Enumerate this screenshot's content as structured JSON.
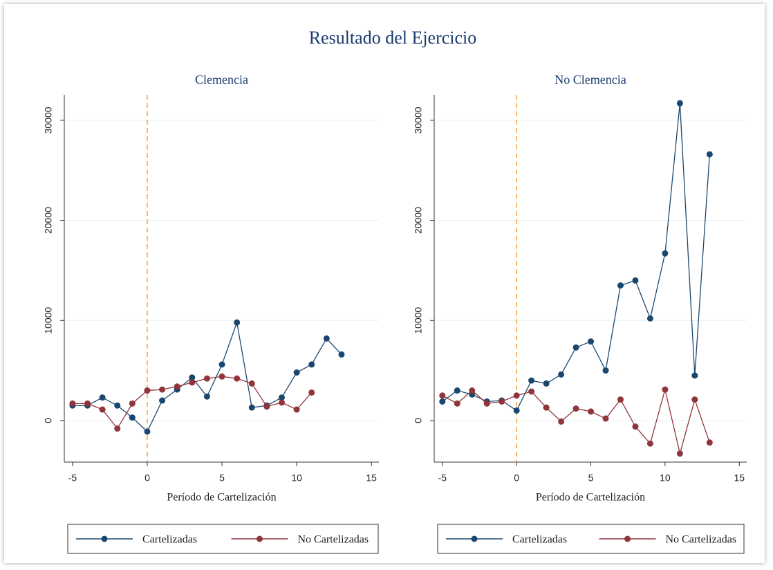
{
  "title": "Resultado del Ejercicio",
  "chart_data": [
    {
      "type": "line",
      "title": "Clemencia",
      "xlabel": "Período de Cartelización",
      "x": [
        -5,
        -4,
        -3,
        -2,
        -1,
        0,
        1,
        2,
        3,
        4,
        5,
        6,
        7,
        8,
        9,
        10,
        11,
        12,
        13
      ],
      "series": [
        {
          "name": "Cartelizadas",
          "color": "#1a476f",
          "values": [
            1500,
            1500,
            2300,
            1500,
            300,
            -1100,
            2000,
            3100,
            4300,
            2400,
            5600,
            9800,
            1300,
            1500,
            2300,
            4800,
            5600,
            8200,
            6600
          ]
        },
        {
          "name": "No Cartelizadas",
          "color": "#90353b",
          "values": [
            1700,
            1700,
            1100,
            -800,
            1700,
            3000,
            3100,
            3400,
            3800,
            4200,
            4400,
            4200,
            3700,
            1400,
            1800,
            1100,
            2800,
            null,
            null
          ]
        }
      ],
      "xlim": [
        -5.55,
        15.5
      ],
      "ylim": [
        -4150,
        32550
      ],
      "xticks": [
        -5,
        0,
        5,
        10,
        15
      ],
      "yticks": [
        0,
        10000,
        20000,
        30000
      ],
      "grid": true,
      "vline": {
        "x": 0,
        "color": "#f4a340"
      },
      "legend": "bottom"
    },
    {
      "type": "line",
      "title": "No Clemencia",
      "xlabel": "Período de Cartelización",
      "x": [
        -5,
        -4,
        -3,
        -2,
        -1,
        0,
        1,
        2,
        3,
        4,
        5,
        6,
        7,
        8,
        9,
        10,
        11,
        12,
        13
      ],
      "series": [
        {
          "name": "Cartelizadas",
          "color": "#1a476f",
          "values": [
            1900,
            3000,
            2600,
            1900,
            2000,
            1000,
            4000,
            3700,
            4600,
            7300,
            7900,
            5000,
            13500,
            14000,
            10200,
            16700,
            31700,
            4500,
            26600
          ]
        },
        {
          "name": "No Cartelizadas",
          "color": "#90353b",
          "values": [
            2500,
            1700,
            3000,
            1700,
            1900,
            2500,
            2900,
            1300,
            -100,
            1200,
            900,
            200,
            2100,
            -600,
            -2300,
            3100,
            -3300,
            2100,
            -2200
          ]
        }
      ],
      "xlim": [
        -5.55,
        15.5
      ],
      "ylim": [
        -4150,
        32550
      ],
      "xticks": [
        -5,
        0,
        5,
        10,
        15
      ],
      "yticks": [
        0,
        10000,
        20000,
        30000
      ],
      "grid": true,
      "vline": {
        "x": 0,
        "color": "#f4a340"
      },
      "legend": "bottom"
    }
  ]
}
